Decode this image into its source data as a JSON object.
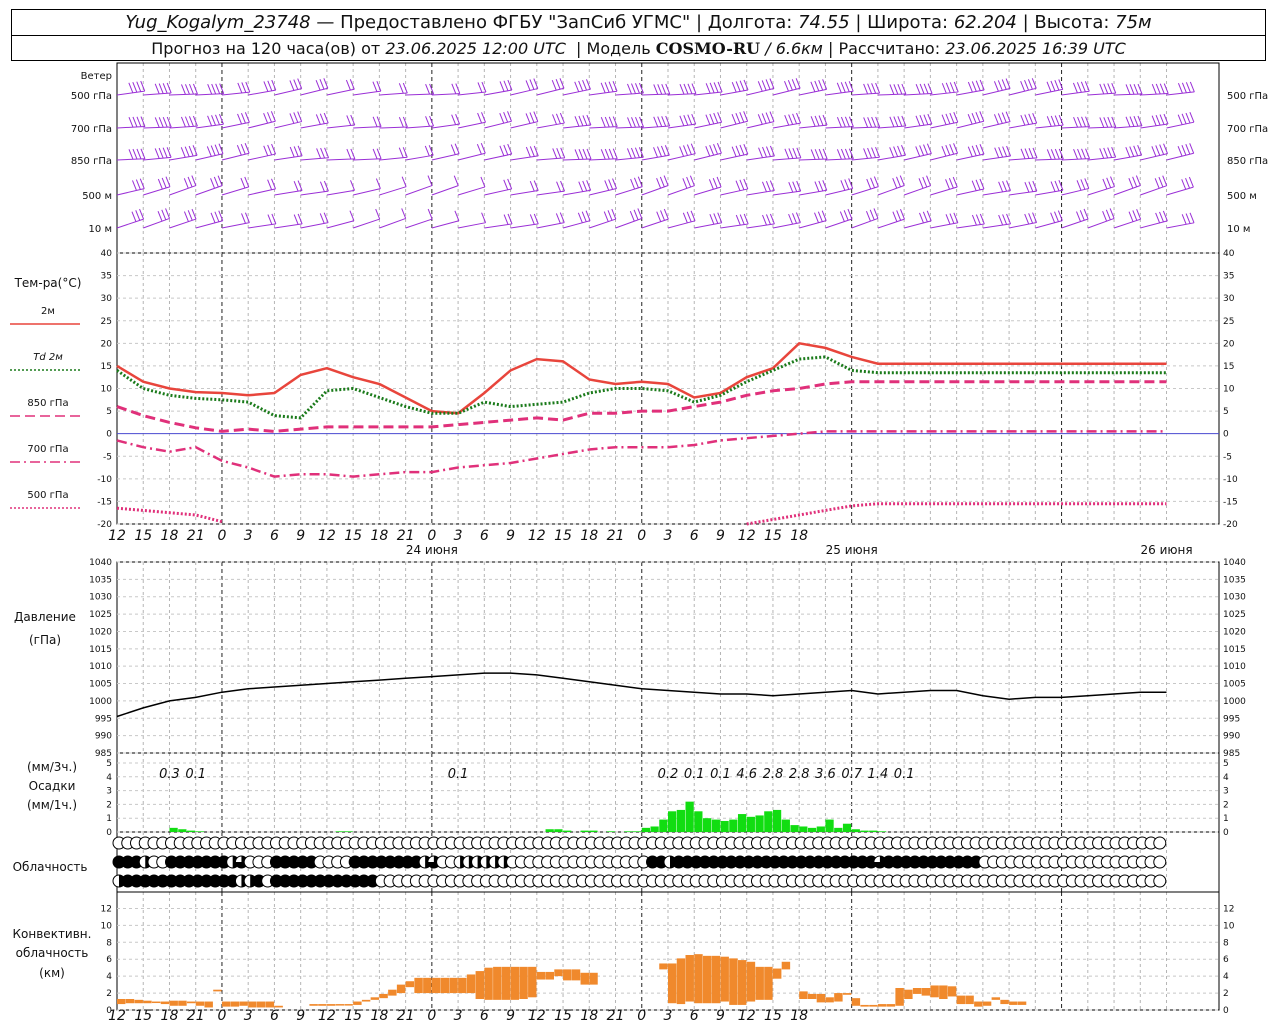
{
  "header": {
    "station": "Yug_Kogalym_23748",
    "dash": "—",
    "provider": "Предоставлено ФГБУ \"ЗапСиб УГМС\"",
    "lon_label": "Долгота:",
    "lon": "74.55",
    "lat_label": "Широта:",
    "lat": "62.204",
    "alt_label": "Высота:",
    "alt": "75м",
    "forecast_prefix": "Прогноз на 120 часа(ов) от",
    "forecast_time": "23.06.2025 12:00 UTC",
    "model_label": "Модель",
    "model": "COSMO-RU",
    "model_res": "/ 6.6км",
    "calc_label": "Рассчитано:",
    "calc_time": "23.06.2025 16:39 UTC"
  },
  "wind_panel": {
    "title": "Ветер",
    "levels": [
      "500 гПа",
      "700 гПа",
      "850 гПа",
      "500 м",
      "10  м"
    ],
    "color": "#9a2fd6"
  },
  "temp_panel": {
    "title": "Тем-ра(°C)",
    "legend": [
      {
        "label": "2м",
        "color": "#e8453c",
        "style": "solid"
      },
      {
        "label": "Td  2м",
        "color": "#1a7a1a",
        "style": "dotted"
      },
      {
        "label": "850 гПа",
        "color": "#e0307a",
        "style": "dashed"
      },
      {
        "label": "700 гПа",
        "color": "#e0307a",
        "style": "dashdot"
      },
      {
        "label": "500 гПа",
        "color": "#e0307a",
        "style": "dotted"
      }
    ],
    "yticks": [
      "40",
      "35",
      "30",
      "25",
      "20",
      "15",
      "10",
      "5",
      "0",
      "-5",
      "-10",
      "-15",
      "-20"
    ]
  },
  "pressure_panel": {
    "title": "Давление",
    "unit": "(гПа)",
    "yticks": [
      "1040",
      "1035",
      "1030",
      "1025",
      "1020",
      "1015",
      "1010",
      "1005",
      "1000",
      "995",
      "990",
      "985"
    ]
  },
  "precip_panel": {
    "unit3": "(мм/3ч.)",
    "title": "Осадки",
    "unit1": "(мм/1ч.)",
    "yticks": [
      "5",
      "4",
      "3",
      "2",
      "1",
      "0"
    ],
    "color": "#11dd11"
  },
  "cloud_panel": {
    "title": "Облачность"
  },
  "conv_panel": {
    "title1": "Конвективн.",
    "title2": "облачность",
    "unit": "(км)",
    "yticks": [
      "12",
      "10",
      "8",
      "6",
      "4",
      "2",
      "0"
    ],
    "color": "#f0892c"
  },
  "x_axis": {
    "ticks": [
      "12",
      "15",
      "18",
      "21",
      "0",
      "3",
      "6",
      "9",
      "12",
      "15",
      "18",
      "21",
      "0",
      "3",
      "6",
      "9",
      "12",
      "15",
      "18",
      "21",
      "0",
      "3",
      "6",
      "9",
      "12",
      "15",
      "18"
    ],
    "day_labels": [
      "24 июня",
      "25 июня",
      "26 июня"
    ]
  },
  "chart_data": [
    {
      "type": "line",
      "title": "Тем-ра(°C)",
      "x_hours_from_start": [
        0,
        3,
        6,
        9,
        12,
        15,
        18,
        21,
        24,
        27,
        30,
        33,
        36,
        39,
        42,
        45,
        48,
        51,
        54,
        57,
        60,
        63,
        66,
        69,
        72,
        75,
        78,
        81,
        84,
        87,
        90,
        93,
        96,
        99,
        102,
        105,
        108,
        111,
        114,
        117,
        120
      ],
      "ylim": [
        -20,
        40
      ],
      "series": [
        {
          "name": "2м",
          "values": [
            15,
            11.5,
            10,
            9.2,
            9,
            8.5,
            9,
            13,
            14.5,
            12.5,
            11,
            8,
            5,
            4.5,
            9,
            14,
            16.5,
            16,
            12,
            11,
            11.5,
            11,
            8,
            9,
            12.5,
            14.5,
            20,
            19,
            17,
            15.5,
            15.5,
            15.5,
            15.5,
            15.5,
            15.5,
            15.5,
            15.5,
            15.5,
            15.5,
            15.5,
            15.5
          ]
        },
        {
          "name": "Td  2м",
          "values": [
            14,
            10,
            8.5,
            7.8,
            7.5,
            7,
            4,
            3.5,
            9.5,
            10,
            8,
            6,
            4.5,
            4.5,
            7,
            6,
            6.5,
            7,
            9,
            10,
            10,
            9.5,
            7,
            8.5,
            11.5,
            14,
            16.5,
            17,
            14,
            13.5,
            13.5,
            13.5,
            13.5,
            13.5,
            13.5,
            13.5,
            13.5,
            13.5,
            13.5,
            13.5,
            13.5
          ]
        },
        {
          "name": "850 гПа",
          "values": [
            6,
            4,
            2.5,
            1.3,
            0.5,
            1,
            0.5,
            1,
            1.5,
            1.5,
            1.5,
            1.5,
            1.5,
            2,
            2.5,
            3,
            3.5,
            3,
            4.5,
            4.5,
            5,
            5,
            6,
            7,
            8.5,
            9.5,
            10,
            11,
            11.5,
            11.5,
            11.5,
            11.5,
            11.5,
            11.5,
            11.5,
            11.5,
            11.5,
            11.5,
            11.5,
            11.5,
            11.5
          ]
        },
        {
          "name": "700 гПа",
          "values": [
            -1.5,
            -3,
            -4,
            -3,
            -6,
            -7.5,
            -9.5,
            -9,
            -9,
            -9.5,
            -9,
            -8.5,
            -8.5,
            -7.5,
            -7,
            -6.5,
            -5.5,
            -4.5,
            -3.5,
            -3,
            -3,
            -3,
            -2.5,
            -1.5,
            -1,
            -0.5,
            0,
            0.5,
            0.5,
            0.5,
            0.5,
            0.5,
            0.5,
            0.5,
            0.5,
            0.5,
            0.5,
            0.5,
            0.5,
            0.5,
            0.5
          ]
        },
        {
          "name": "500 гПа",
          "values": [
            -16.5,
            -17,
            -17.5,
            -18,
            -19.5,
            null,
            null,
            null,
            null,
            null,
            null,
            null,
            null,
            null,
            null,
            null,
            null,
            null,
            null,
            null,
            null,
            null,
            null,
            null,
            -20,
            -19,
            -18,
            -17,
            -16,
            -15.5,
            -15.5,
            -15.5,
            -15.5,
            -15.5,
            -15.5,
            -15.5,
            -15.5,
            -15.5,
            -15.5,
            -15.5,
            -15.5
          ]
        }
      ]
    },
    {
      "type": "line",
      "title": "Давление",
      "ylim": [
        985,
        1040
      ],
      "x_hours_from_start": [
        0,
        3,
        6,
        9,
        12,
        15,
        18,
        21,
        24,
        27,
        30,
        33,
        36,
        39,
        42,
        45,
        48,
        51,
        54,
        57,
        60,
        63,
        66,
        69,
        72,
        75,
        78,
        81,
        84,
        87,
        90,
        93,
        96,
        99,
        102,
        105,
        108,
        111,
        114,
        117,
        120
      ],
      "series": [
        {
          "name": "",
          "values": [
            995.5,
            998,
            1000,
            1001,
            1002.5,
            1003.5,
            1004,
            1004.5,
            1005,
            1005.5,
            1006,
            1006.5,
            1007,
            1007.5,
            1008,
            1008,
            1007.5,
            1006.5,
            1005.5,
            1004.5,
            1003.5,
            1003,
            1002.5,
            1002,
            1002,
            1001.5,
            1002,
            1002.5,
            1003,
            1002,
            1002.5,
            1003,
            1003,
            1001.5,
            1000.5,
            1001,
            1001,
            1001.5,
            1002,
            1002.5,
            1002.5
          ]
        }
      ]
    },
    {
      "type": "bar",
      "title": "Осадки",
      "ylim": [
        0,
        5
      ],
      "hourly_start_hour": 0,
      "bars_mm_per_hour": [
        [
          6,
          0.3
        ],
        [
          7,
          0.2
        ],
        [
          8,
          0.1
        ],
        [
          9,
          0.05
        ],
        [
          25,
          0.05
        ],
        [
          26,
          0.05
        ],
        [
          49,
          0.2
        ],
        [
          50,
          0.2
        ],
        [
          51,
          0.1
        ],
        [
          53,
          0.1
        ],
        [
          54,
          0.1
        ],
        [
          56,
          0.05
        ],
        [
          58,
          0.05
        ],
        [
          59,
          0.05
        ],
        [
          60,
          0.3
        ],
        [
          61,
          0.4
        ],
        [
          62,
          0.9
        ],
        [
          63,
          1.5
        ],
        [
          64,
          1.6
        ],
        [
          65,
          2.2
        ],
        [
          66,
          1.5
        ],
        [
          67,
          1.0
        ],
        [
          68,
          0.9
        ],
        [
          69,
          0.8
        ],
        [
          70,
          0.9
        ],
        [
          71,
          1.3
        ],
        [
          72,
          1.1
        ],
        [
          73,
          1.2
        ],
        [
          74,
          1.5
        ],
        [
          75,
          1.6
        ],
        [
          76,
          0.9
        ],
        [
          77,
          0.5
        ],
        [
          78,
          0.4
        ],
        [
          79,
          0.3
        ],
        [
          80,
          0.4
        ],
        [
          81,
          0.9
        ],
        [
          82,
          0.3
        ],
        [
          83,
          0.6
        ],
        [
          84,
          0.2
        ],
        [
          85,
          0.1
        ],
        [
          86,
          0.1
        ],
        [
          87,
          0.05
        ]
      ],
      "labels_3h": [
        {
          "x_hour": 6,
          "text": "0.3"
        },
        {
          "x_hour": 9,
          "text": "0.1"
        },
        {
          "x_hour": 39,
          "text": "0.1"
        },
        {
          "x_hour": 63,
          "text": "0.2"
        },
        {
          "x_hour": 66,
          "text": "0.1"
        },
        {
          "x_hour": 69,
          "text": "0.1"
        },
        {
          "x_hour": 72,
          "text": "4.6"
        },
        {
          "x_hour": 75,
          "text": "2.8"
        },
        {
          "x_hour": 78,
          "text": "2.8"
        },
        {
          "x_hour": 81,
          "text": "3.6"
        },
        {
          "x_hour": 84,
          "text": "0.7"
        },
        {
          "x_hour": 87,
          "text": "1.4"
        },
        {
          "x_hour": 90,
          "text": "0.1"
        }
      ]
    },
    {
      "type": "table",
      "title": "Облачность",
      "rows_description": "three layers (top=upper, middle, bottom=low), one symbol per hour; 0=clear, 1=quarter, 2=half, 3=three-quarter, 4=overcast",
      "upper": "000000000000000000000000000000000000000000000000000000000000000000000000000000000000000000000000000000000000000000000000",
      "middle": "444200444444423000444440000444444442300222222000000000000000044244444444444444444444444344444444444000000000000000000000",
      "low": "244444444444442240444444444444000000000000000000000000000000000000000000000000000000000000000000000000000000000000000000"
    },
    {
      "type": "bar",
      "title": "Конвективн. облачность",
      "ylim": [
        0,
        13
      ],
      "floating_bars_km": [
        [
          0,
          0.7,
          1.3
        ],
        [
          1,
          0.8,
          1.3
        ],
        [
          2,
          0.8,
          1.2
        ],
        [
          3,
          0.8,
          1.1
        ],
        [
          4,
          0.9,
          1.0
        ],
        [
          5,
          0.7,
          1.0
        ],
        [
          6,
          0.5,
          1.1
        ],
        [
          7,
          0.5,
          1.1
        ],
        [
          8,
          0.8,
          1.0
        ],
        [
          9,
          0.5,
          1.0
        ],
        [
          10,
          0.3,
          1.0
        ],
        [
          11,
          2.2,
          2.4
        ],
        [
          12,
          0.4,
          1.0
        ],
        [
          13,
          0.4,
          1.0
        ],
        [
          14,
          0.5,
          1.0
        ],
        [
          15,
          0.3,
          1.0
        ],
        [
          16,
          0.3,
          1.0
        ],
        [
          17,
          0.3,
          1.0
        ],
        [
          18,
          0.3,
          0.5
        ],
        [
          22,
          0.5,
          0.7
        ],
        [
          23,
          0.5,
          0.7
        ],
        [
          24,
          0.5,
          0.7
        ],
        [
          25,
          0.6,
          0.7
        ],
        [
          26,
          0.6,
          0.7
        ],
        [
          27,
          0.6,
          1.0
        ],
        [
          28,
          1.0,
          1.2
        ],
        [
          29,
          1.2,
          1.5
        ],
        [
          30,
          1.4,
          1.9
        ],
        [
          31,
          1.7,
          2.4
        ],
        [
          32,
          2.0,
          3.0
        ],
        [
          33,
          2.7,
          3.4
        ],
        [
          34,
          2.0,
          3.8
        ],
        [
          35,
          2.0,
          3.8
        ],
        [
          36,
          2.0,
          3.8
        ],
        [
          37,
          2.0,
          3.8
        ],
        [
          38,
          2.0,
          3.8
        ],
        [
          39,
          2.0,
          3.8
        ],
        [
          40,
          2.0,
          4.2
        ],
        [
          41,
          1.3,
          4.6
        ],
        [
          42,
          1.2,
          5.0
        ],
        [
          43,
          1.2,
          5.1
        ],
        [
          44,
          1.2,
          5.1
        ],
        [
          45,
          1.2,
          5.1
        ],
        [
          46,
          1.3,
          5.1
        ],
        [
          47,
          1.5,
          5.1
        ],
        [
          48,
          3.6,
          4.5
        ],
        [
          49,
          3.6,
          4.5
        ],
        [
          50,
          4.0,
          4.8
        ],
        [
          51,
          3.5,
          4.8
        ],
        [
          52,
          3.5,
          4.8
        ],
        [
          53,
          3.0,
          4.4
        ],
        [
          54,
          3.0,
          4.4
        ],
        [
          62,
          4.8,
          5.5
        ],
        [
          63,
          0.8,
          5.5
        ],
        [
          64,
          0.7,
          6.1
        ],
        [
          65,
          1.0,
          6.5
        ],
        [
          66,
          0.8,
          6.6
        ],
        [
          67,
          0.8,
          6.4
        ],
        [
          68,
          0.8,
          6.4
        ],
        [
          69,
          1.0,
          6.3
        ],
        [
          70,
          0.6,
          6.1
        ],
        [
          71,
          0.6,
          5.9
        ],
        [
          72,
          1.0,
          5.7
        ],
        [
          73,
          1.2,
          5.1
        ],
        [
          74,
          1.2,
          5.1
        ],
        [
          75,
          3.7,
          4.9
        ],
        [
          76,
          4.8,
          5.7
        ],
        [
          78,
          1.3,
          2.2
        ],
        [
          79,
          1.3,
          1.9
        ],
        [
          80,
          0.9,
          1.9
        ],
        [
          81,
          0.9,
          1.5
        ],
        [
          82,
          1.0,
          2.0
        ],
        [
          83,
          1.8,
          2.0
        ],
        [
          84,
          0.5,
          1.4
        ],
        [
          85,
          0.4,
          0.6
        ],
        [
          86,
          0.4,
          0.6
        ],
        [
          87,
          0.4,
          0.7
        ],
        [
          88,
          0.4,
          0.7
        ],
        [
          89,
          0.5,
          2.6
        ],
        [
          90,
          1.3,
          2.4
        ],
        [
          91,
          1.9,
          2.6
        ],
        [
          92,
          1.7,
          2.6
        ],
        [
          93,
          1.5,
          2.9
        ],
        [
          94,
          1.3,
          2.9
        ],
        [
          95,
          1.6,
          2.8
        ],
        [
          96,
          0.7,
          1.7
        ],
        [
          97,
          0.7,
          1.7
        ],
        [
          98,
          0.4,
          1.0
        ],
        [
          99,
          0.5,
          1.0
        ],
        [
          100,
          1.2,
          1.5
        ],
        [
          101,
          0.7,
          1.2
        ],
        [
          102,
          0.6,
          1.0
        ],
        [
          103,
          0.6,
          1.0
        ]
      ]
    }
  ]
}
